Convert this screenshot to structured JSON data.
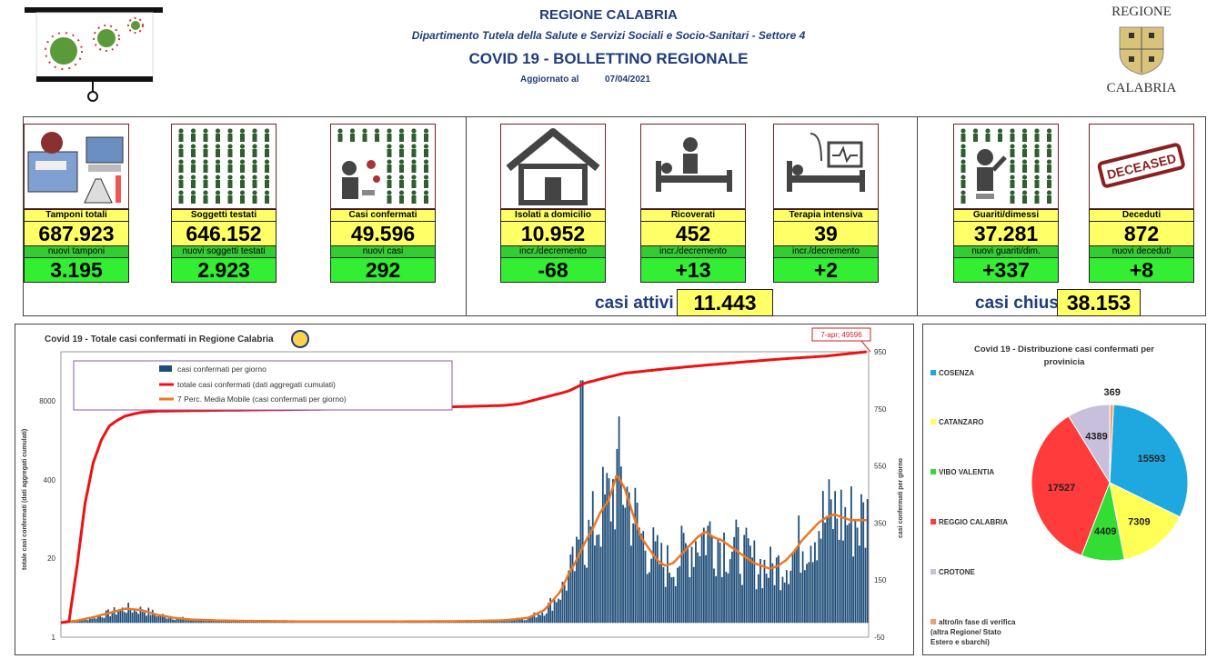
{
  "header": {
    "region": "REGIONE CALABRIA",
    "department": "Dipartimento Tutela della Salute e Servizi Sociali e Socio-Sanitari - Settore 4",
    "bulletin": "COVID 19 - BOLLETTINO REGIONALE",
    "updated_label": "Aggiornato al",
    "updated_date": "07/04/2021",
    "logo_top": "REGIONE",
    "logo_bottom": "CALABRIA"
  },
  "cards": [
    {
      "label": "Tamponi totali",
      "value": "687.923",
      "sub_label": "nuovi tamponi",
      "sub_value": "3.195",
      "icon": "lab-equipment-icon"
    },
    {
      "label": "Soggetti testati",
      "value": "646.152",
      "sub_label": "nuovi soggetti testati",
      "sub_value": "2.923",
      "icon": "people-grid-icon"
    },
    {
      "label": "Casi confermati",
      "value": "49.596",
      "sub_label": "nuovi casi",
      "sub_value": "292",
      "icon": "infected-person-icon"
    },
    {
      "label": "Isolati a domicilio",
      "value": "10.952",
      "sub_label": "incr./decremento",
      "sub_value": "-68",
      "icon": "house-icon"
    },
    {
      "label": "Ricoverati",
      "value": "452",
      "sub_label": "incr./decremento",
      "sub_value": "+13",
      "icon": "hospital-bed-icon"
    },
    {
      "label": "Terapia intensiva",
      "value": "39",
      "sub_label": "incr./decremento",
      "sub_value": "+2",
      "icon": "icu-bed-icon"
    },
    {
      "label": "Guariti/dimessi",
      "value": "37.281",
      "sub_label": "nuovi guariti/dim.",
      "sub_value": "+337",
      "icon": "recovered-person-icon"
    },
    {
      "label": "Deceduti",
      "value": "872",
      "sub_label": "nuovi deceduti",
      "sub_value": "+8",
      "icon": "deceased-stamp-icon"
    }
  ],
  "deceased_stamp": "DECEASED",
  "summary": {
    "active_label": "casi attivi",
    "active_value": "11.443",
    "closed_label": "casi chiusi",
    "closed_value": "38.153"
  },
  "chart_data": [
    {
      "type": "bar+line",
      "title": "Covid 19 - Totale casi confermati in Regione Calabria",
      "ylabel": "totale casi confermati (dati aggregati cumulati)",
      "y2label": "casi confermati per giorno",
      "left_ticks": [
        "1",
        "20",
        "400",
        "8000"
      ],
      "right_ticks": [
        "-50",
        "150",
        "350",
        "550",
        "750",
        "950"
      ],
      "annotation": "7-apr; 49596",
      "legend": [
        "casi confermati per giorno",
        "totale casi confermati (dati aggregati cumulati)",
        "7 Perc. Media Mobile (casi confermati per giorno)"
      ],
      "colors": {
        "daily": "#1f4e79",
        "cumulative": "#ee1111",
        "moving_avg": "#ee7722"
      },
      "daily_profile": [
        [
          0,
          0
        ],
        [
          2,
          8
        ],
        [
          4,
          20
        ],
        [
          6,
          35
        ],
        [
          8,
          50
        ],
        [
          10,
          45
        ],
        [
          12,
          28
        ],
        [
          14,
          18
        ],
        [
          16,
          12
        ],
        [
          20,
          8
        ],
        [
          30,
          5
        ],
        [
          40,
          5
        ],
        [
          50,
          6
        ],
        [
          55,
          9
        ],
        [
          58,
          18
        ],
        [
          60,
          45
        ],
        [
          62,
          110
        ],
        [
          63,
          170
        ],
        [
          64,
          220
        ],
        [
          65,
          280
        ],
        [
          66,
          330
        ],
        [
          67,
          390
        ],
        [
          68,
          430
        ],
        [
          69,
          520
        ],
        [
          70,
          470
        ],
        [
          71,
          380
        ],
        [
          72,
          300
        ],
        [
          73,
          260
        ],
        [
          74,
          220
        ],
        [
          75,
          200
        ],
        [
          76,
          210
        ],
        [
          77,
          240
        ],
        [
          78,
          270
        ],
        [
          79,
          300
        ],
        [
          80,
          320
        ],
        [
          81,
          300
        ],
        [
          82,
          290
        ],
        [
          83,
          270
        ],
        [
          84,
          250
        ],
        [
          85,
          230
        ],
        [
          86,
          210
        ],
        [
          87,
          200
        ],
        [
          88,
          190
        ],
        [
          89,
          200
        ],
        [
          90,
          220
        ],
        [
          91,
          250
        ],
        [
          92,
          290
        ],
        [
          93,
          320
        ],
        [
          94,
          350
        ],
        [
          95,
          370
        ],
        [
          96,
          380
        ],
        [
          97,
          370
        ],
        [
          98,
          360
        ],
        [
          100,
          360
        ]
      ],
      "cumulative_profile": [
        [
          0,
          1
        ],
        [
          1,
          5
        ],
        [
          2,
          200
        ],
        [
          3,
          420
        ],
        [
          4,
          560
        ],
        [
          5,
          640
        ],
        [
          6,
          690
        ],
        [
          7,
          710
        ],
        [
          8,
          725
        ],
        [
          9,
          732
        ],
        [
          10,
          738
        ],
        [
          12,
          742
        ],
        [
          20,
          745
        ],
        [
          30,
          748
        ],
        [
          40,
          752
        ],
        [
          50,
          758
        ],
        [
          55,
          762
        ],
        [
          57,
          768
        ],
        [
          60,
          790
        ],
        [
          63,
          812
        ],
        [
          65,
          840
        ],
        [
          68,
          862
        ],
        [
          70,
          875
        ],
        [
          75,
          890
        ],
        [
          80,
          903
        ],
        [
          85,
          915
        ],
        [
          90,
          926
        ],
        [
          95,
          935
        ],
        [
          100,
          950
        ]
      ]
    },
    {
      "type": "pie",
      "title": "Covid 19 - Distribuzione casi confermati per provinicia",
      "categories": [
        "COSENZA",
        "CATANZARO",
        "VIBO VALENTIA",
        "REGGIO CALABRIA",
        "CROTONE",
        "altro/in fase di verifica (altra Regione/ Stato Estero e sbarchi)"
      ],
      "values": [
        15593,
        7309,
        4409,
        17527,
        4389,
        369
      ],
      "colors": [
        "#1fa8e0",
        "#ffff55",
        "#33dd33",
        "#ff3b3b",
        "#c8bfdc",
        "#f0a070"
      ]
    }
  ]
}
